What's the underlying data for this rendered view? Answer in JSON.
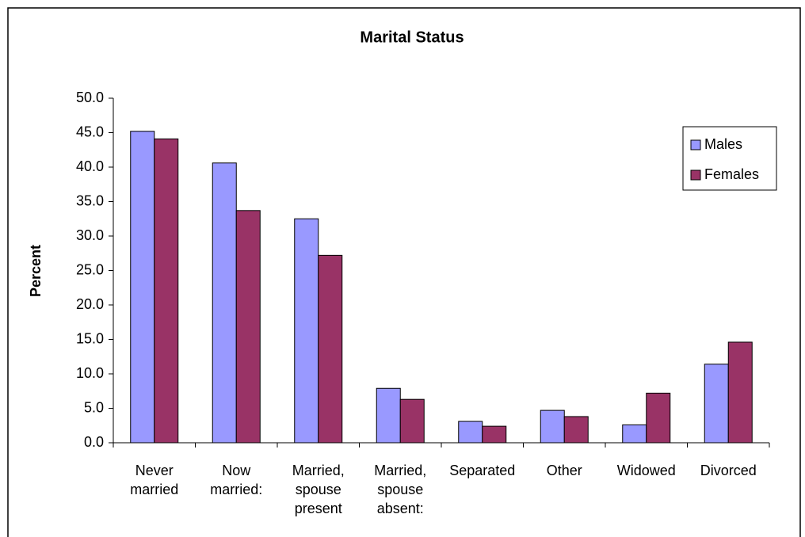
{
  "chart_data": {
    "type": "bar",
    "title": "Marital Status",
    "y_label": "Percent",
    "categories": [
      "Never married",
      "Now married:",
      "Married, spouse present",
      "Married, spouse absent:",
      "Separated",
      "Other",
      "Widowed",
      "Divorced"
    ],
    "series": [
      {
        "name": "Males",
        "color": "#9999ff",
        "values": [
          45.2,
          40.6,
          32.5,
          7.9,
          3.1,
          4.7,
          2.6,
          11.4
        ]
      },
      {
        "name": "Females",
        "color": "#993366",
        "values": [
          44.1,
          33.7,
          27.2,
          6.3,
          2.4,
          3.8,
          7.2,
          14.6
        ]
      }
    ],
    "ylim": [
      0,
      50
    ],
    "yticks": [
      {
        "value": 0,
        "label": "0.0"
      },
      {
        "value": 5,
        "label": "5.0"
      },
      {
        "value": 10,
        "label": "10.0"
      },
      {
        "value": 15,
        "label": "15.0"
      },
      {
        "value": 20,
        "label": "20.0"
      },
      {
        "value": 25,
        "label": "25.0"
      },
      {
        "value": 30,
        "label": "30.0"
      },
      {
        "value": 35,
        "label": "35.0"
      },
      {
        "value": 40,
        "label": "40.0"
      },
      {
        "value": 45,
        "label": "45.0"
      },
      {
        "value": 50,
        "label": "50.0"
      }
    ],
    "grid": false,
    "legend": "right"
  }
}
